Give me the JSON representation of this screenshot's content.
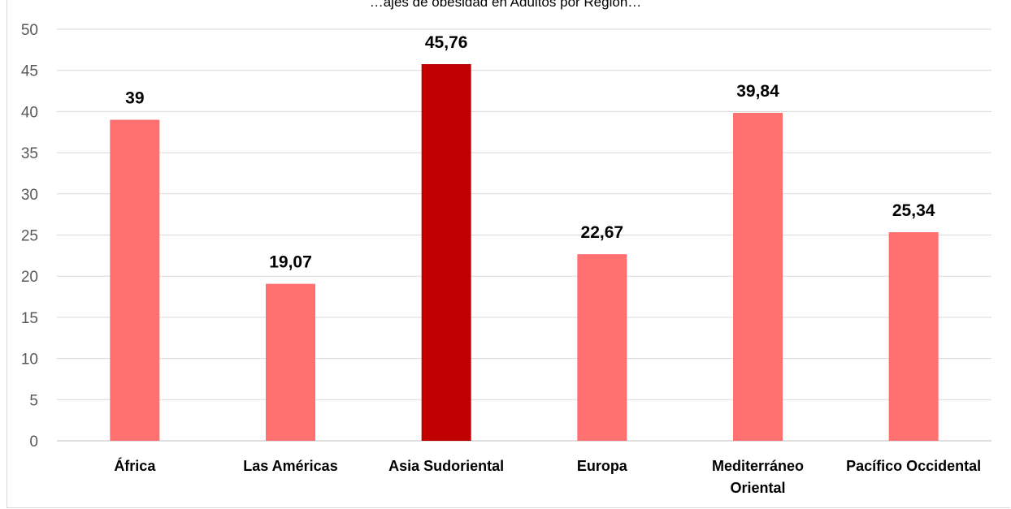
{
  "chart_data": {
    "type": "bar",
    "title": "…ajes de obesidad en Adultos por Región…",
    "categories": [
      "África",
      "Las Américas",
      "Asia Sudoriental",
      "Europa",
      "Mediterráneo Oriental",
      "Pacífico Occidental"
    ],
    "category_lines": [
      [
        "África"
      ],
      [
        "Las Américas"
      ],
      [
        "Asia Sudoriental"
      ],
      [
        "Europa"
      ],
      [
        "Mediterráneo",
        "Oriental"
      ],
      [
        "Pacífico Occidental"
      ]
    ],
    "values": [
      39,
      19.07,
      45.76,
      22.67,
      39.84,
      25.34
    ],
    "data_labels": [
      "39",
      "19,07",
      "45,76",
      "22,67",
      "39,84",
      "25,34"
    ],
    "y_ticks": [
      "0",
      "5",
      "10",
      "15",
      "20",
      "25",
      "30",
      "35",
      "40",
      "45",
      "50"
    ],
    "ylim": [
      0,
      50
    ],
    "grid": true,
    "bar_colors": [
      "#ff7070",
      "#ff7070",
      "#c00000",
      "#ff7070",
      "#ff7070",
      "#ff7070"
    ],
    "xlabel": "",
    "ylabel": ""
  }
}
